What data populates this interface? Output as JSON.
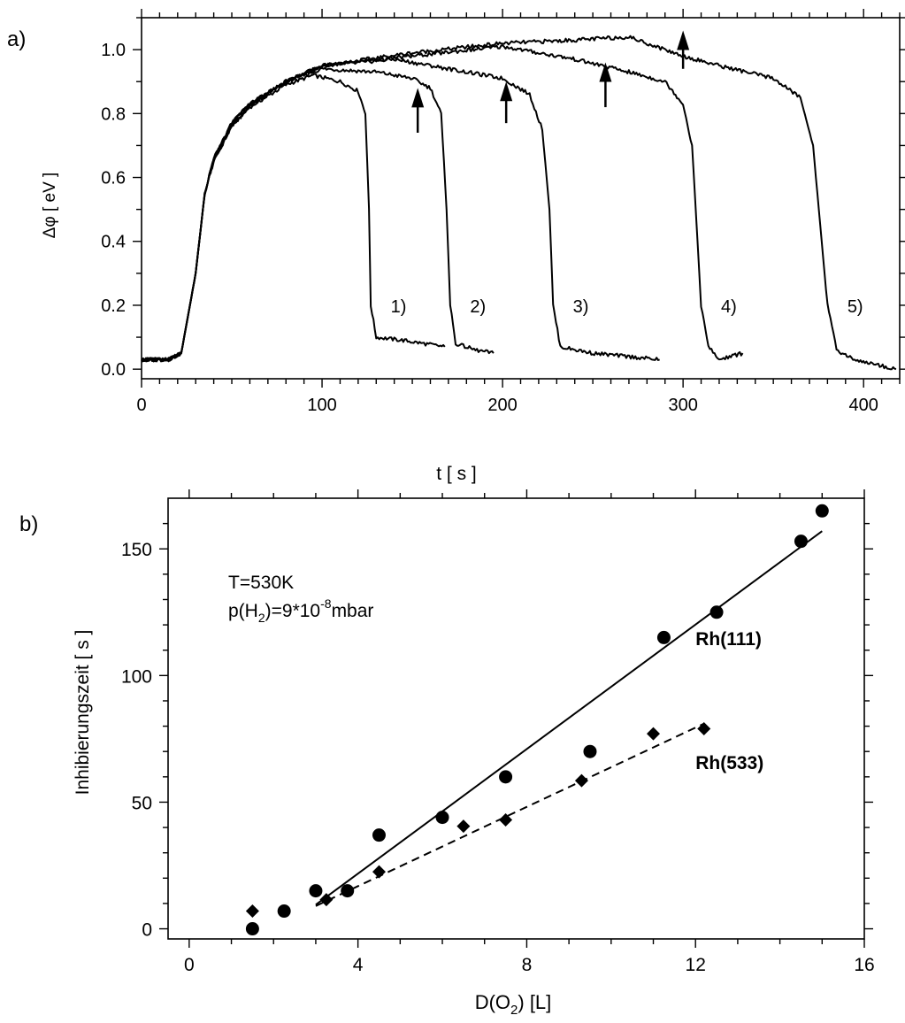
{
  "chart_data": [
    {
      "panel_label": "a)",
      "type": "line",
      "xlabel": "t  [ s ]",
      "ylabel": "Δφ  [ eV ]",
      "xlim": [
        0,
        420
      ],
      "ylim": [
        -0.03,
        1.1
      ],
      "xticks": [
        0,
        100,
        200,
        300,
        400
      ],
      "yticks": [
        0.0,
        0.2,
        0.4,
        0.6,
        0.8,
        1.0
      ],
      "ytick_labels": [
        "0.0",
        "0.2",
        "0.4",
        "0.6",
        "0.8",
        "1.0"
      ],
      "grid": false,
      "series": [
        {
          "label": "1)",
          "rise_start": 28,
          "drop_time": 127,
          "end_time": 168,
          "end_value": 0.07,
          "points": [
            [
              0,
              0.03
            ],
            [
              15,
              0.03
            ],
            [
              22,
              0.05
            ],
            [
              30,
              0.3
            ],
            [
              35,
              0.55
            ],
            [
              40,
              0.65
            ],
            [
              50,
              0.76
            ],
            [
              60,
              0.82
            ],
            [
              80,
              0.89
            ],
            [
              95,
              0.92
            ],
            [
              110,
              0.9
            ],
            [
              120,
              0.87
            ],
            [
              124,
              0.8
            ],
            [
              126,
              0.5
            ],
            [
              127,
              0.2
            ],
            [
              130,
              0.1
            ],
            [
              145,
              0.09
            ],
            [
              168,
              0.07
            ]
          ]
        },
        {
          "label": "2)",
          "rise_start": 27,
          "drop_time": 171,
          "end_time": 195,
          "end_value": 0.05,
          "points": [
            [
              0,
              0.03
            ],
            [
              15,
              0.03
            ],
            [
              22,
              0.05
            ],
            [
              30,
              0.3
            ],
            [
              35,
              0.55
            ],
            [
              40,
              0.65
            ],
            [
              50,
              0.76
            ],
            [
              60,
              0.82
            ],
            [
              80,
              0.9
            ],
            [
              100,
              0.94
            ],
            [
              130,
              0.93
            ],
            [
              150,
              0.91
            ],
            [
              160,
              0.88
            ],
            [
              166,
              0.8
            ],
            [
              169,
              0.5
            ],
            [
              171,
              0.2
            ],
            [
              174,
              0.08
            ],
            [
              185,
              0.06
            ],
            [
              195,
              0.05
            ]
          ]
        },
        {
          "label": "3)",
          "rise_start": 26,
          "drop_time": 228,
          "end_time": 287,
          "end_value": 0.03,
          "points": [
            [
              0,
              0.03
            ],
            [
              15,
              0.03
            ],
            [
              22,
              0.05
            ],
            [
              30,
              0.3
            ],
            [
              35,
              0.55
            ],
            [
              40,
              0.66
            ],
            [
              50,
              0.77
            ],
            [
              60,
              0.83
            ],
            [
              80,
              0.9
            ],
            [
              100,
              0.95
            ],
            [
              140,
              0.97
            ],
            [
              160,
              0.95
            ],
            [
              180,
              0.93
            ],
            [
              200,
              0.91
            ],
            [
              215,
              0.86
            ],
            [
              222,
              0.75
            ],
            [
              226,
              0.5
            ],
            [
              228,
              0.2
            ],
            [
              232,
              0.07
            ],
            [
              250,
              0.05
            ],
            [
              287,
              0.03
            ]
          ]
        },
        {
          "label": "4)",
          "rise_start": 25,
          "drop_time": 310,
          "end_time": 333,
          "end_value": 0.05,
          "points": [
            [
              0,
              0.03
            ],
            [
              15,
              0.03
            ],
            [
              22,
              0.05
            ],
            [
              30,
              0.3
            ],
            [
              35,
              0.55
            ],
            [
              40,
              0.66
            ],
            [
              50,
              0.77
            ],
            [
              60,
              0.83
            ],
            [
              80,
              0.9
            ],
            [
              100,
              0.95
            ],
            [
              150,
              0.98
            ],
            [
              200,
              1.01
            ],
            [
              240,
              0.97
            ],
            [
              270,
              0.93
            ],
            [
              290,
              0.9
            ],
            [
              300,
              0.83
            ],
            [
              305,
              0.7
            ],
            [
              308,
              0.4
            ],
            [
              310,
              0.2
            ],
            [
              314,
              0.07
            ],
            [
              320,
              0.03
            ],
            [
              333,
              0.05
            ]
          ]
        },
        {
          "label": "5)",
          "rise_start": 24,
          "drop_time": 380,
          "end_time": 418,
          "end_value": 0.0,
          "points": [
            [
              0,
              0.03
            ],
            [
              15,
              0.03
            ],
            [
              22,
              0.05
            ],
            [
              30,
              0.3
            ],
            [
              35,
              0.55
            ],
            [
              40,
              0.66
            ],
            [
              50,
              0.77
            ],
            [
              60,
              0.83
            ],
            [
              80,
              0.9
            ],
            [
              100,
              0.95
            ],
            [
              150,
              0.99
            ],
            [
              200,
              1.02
            ],
            [
              240,
              1.03
            ],
            [
              270,
              1.04
            ],
            [
              290,
              1.0
            ],
            [
              300,
              0.98
            ],
            [
              320,
              0.95
            ],
            [
              350,
              0.91
            ],
            [
              365,
              0.85
            ],
            [
              372,
              0.7
            ],
            [
              376,
              0.45
            ],
            [
              380,
              0.2
            ],
            [
              385,
              0.06
            ],
            [
              395,
              0.03
            ],
            [
              418,
              0.0
            ]
          ]
        }
      ],
      "arrows": [
        {
          "x": 153,
          "y_tail": 0.74,
          "y_head": 0.88
        },
        {
          "x": 202,
          "y_tail": 0.77,
          "y_head": 0.9
        },
        {
          "x": 257,
          "y_tail": 0.82,
          "y_head": 0.96
        },
        {
          "x": 300,
          "y_tail": 0.94,
          "y_head": 1.06
        }
      ]
    },
    {
      "panel_label": "b)",
      "type": "scatter",
      "xlabel_main": "D(O",
      "xlabel_sub": "2",
      "xlabel_rest": ")   [L]",
      "ylabel": "Inhibierungszeit [ s ]",
      "xlim": [
        -0.5,
        16
      ],
      "ylim": [
        -4,
        170
      ],
      "xticks": [
        0,
        4,
        8,
        12,
        16
      ],
      "yticks": [
        0,
        50,
        100,
        150
      ],
      "grid": false,
      "annotation": {
        "line1": "T=530K",
        "line2_pre": "p(H",
        "line2_sub": "2",
        "line2_mid": ")=9*10",
        "line2_sup": "-8",
        "line2_post": "mbar"
      },
      "series": [
        {
          "name": "Rh(111)",
          "marker": "circle",
          "points": [
            [
              1.5,
              0
            ],
            [
              2.25,
              7
            ],
            [
              3,
              15
            ],
            [
              3.75,
              15
            ],
            [
              4.5,
              37
            ],
            [
              6,
              44
            ],
            [
              7.5,
              60
            ],
            [
              9.5,
              70
            ],
            [
              11.25,
              115
            ],
            [
              12.5,
              125
            ],
            [
              14.5,
              153
            ],
            [
              15,
              165
            ]
          ],
          "fit": {
            "style": "solid",
            "from": [
              3.0,
              9.5
            ],
            "to": [
              15.0,
              157
            ]
          }
        },
        {
          "name": "Rh(533)",
          "marker": "diamond",
          "points": [
            [
              1.5,
              7
            ],
            [
              3.25,
              11.5
            ],
            [
              4.5,
              22.5
            ],
            [
              6.5,
              40.5
            ],
            [
              7.5,
              43
            ],
            [
              9.3,
              58.5
            ],
            [
              11,
              77
            ],
            [
              12.2,
              79
            ]
          ],
          "fit": {
            "style": "dashed",
            "from": [
              3.0,
              9
            ],
            "to": [
              12.2,
              81
            ]
          }
        }
      ]
    }
  ]
}
